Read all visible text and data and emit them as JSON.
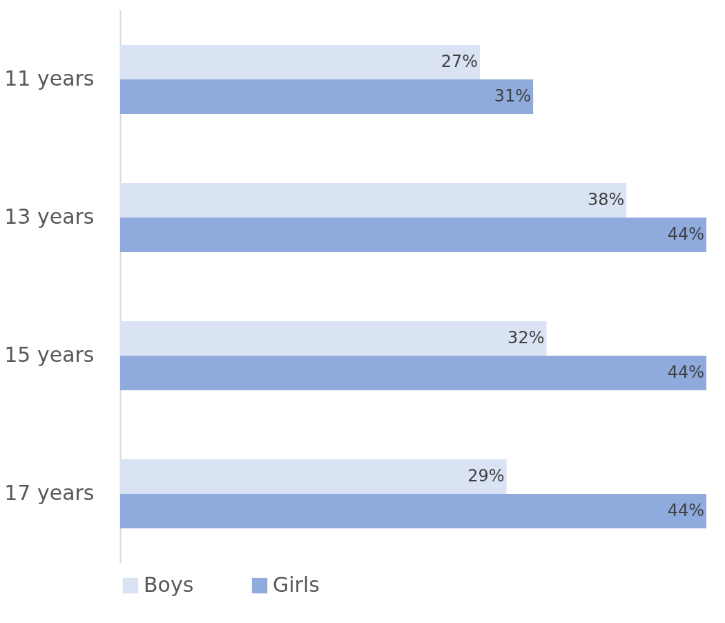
{
  "chart_data": {
    "type": "bar",
    "orientation": "horizontal",
    "categories": [
      "11 years",
      "13 years",
      "15 years",
      "17 years"
    ],
    "series": [
      {
        "name": "Boys",
        "color": "#dae3f3",
        "values": [
          27,
          38,
          32,
          29
        ],
        "value_labels": [
          "27%",
          "38%",
          "32%",
          "29%"
        ]
      },
      {
        "name": "Girls",
        "color": "#8faadc",
        "values": [
          31,
          44,
          44,
          44
        ],
        "value_labels": [
          "31%",
          "44%",
          "44%",
          "44%"
        ]
      }
    ],
    "grid": false,
    "legend": "bottom"
  }
}
